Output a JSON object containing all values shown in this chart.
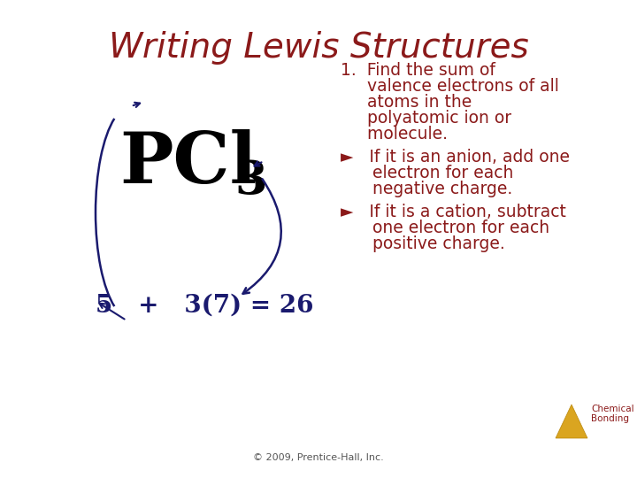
{
  "title": "Writing Lewis Structures",
  "title_color": "#8B1A1A",
  "title_fontsize": 28,
  "bg_color": "#FFFFFF",
  "formula_color": "#000000",
  "equation_color": "#1A1A6E",
  "arrow_color": "#1A1A6E",
  "text_color": "#8B1A1A",
  "point1_line1": "1.  Find the sum of",
  "point1_line2": "     valence electrons of all",
  "point1_line3": "     atoms in the",
  "point1_line4": "     polyatomic ion or",
  "point1_line5": "     molecule.",
  "bullet1_line1": "►   If it is an anion, add one",
  "bullet1_line2": "      electron for each",
  "bullet1_line3": "      negative charge.",
  "bullet2_line1": "►   If it is a cation, subtract",
  "bullet2_line2": "      one electron for each",
  "bullet2_line3": "      positive charge.",
  "copyright_text": "© 2009, Prentice-Hall, Inc.",
  "logo_text1": "Chemical",
  "logo_text2": "Bonding",
  "content_fontsize": 13.5,
  "equation_fontsize": 20
}
